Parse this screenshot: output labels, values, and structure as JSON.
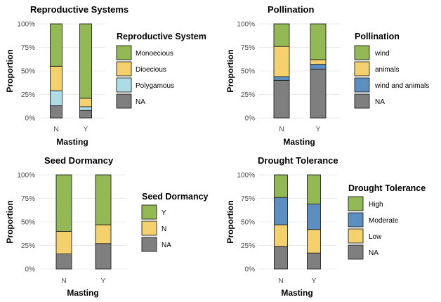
{
  "colors": {
    "Monoecious": "#92B954",
    "Dioecious": "#F5D16E",
    "Polygamous": "#ADDCE6",
    "NA": "#7F7F7F",
    "wind": "#92B954",
    "animals": "#F5D16E",
    "wind and animals": "#5B8FC2",
    "Y": "#92B954",
    "N": "#F5D16E",
    "High": "#92B954",
    "Moderate": "#5B8FC2",
    "Low": "#F5D16E"
  },
  "chart_data": [
    {
      "type": "bar",
      "stacked": true,
      "title": "Reproductive Systems",
      "xlabel": "Masting",
      "ylabel": "Proportion",
      "categories": [
        "N",
        "Y"
      ],
      "yticks": [
        "0%",
        "25%",
        "50%",
        "75%",
        "100%"
      ],
      "ylim": [
        0,
        1
      ],
      "legend_title": "Reproductive System",
      "series": [
        {
          "name": "NA",
          "values": [
            0.13,
            0.08
          ]
        },
        {
          "name": "Polygamous",
          "values": [
            0.16,
            0.04
          ]
        },
        {
          "name": "Dioecious",
          "values": [
            0.26,
            0.09
          ]
        },
        {
          "name": "Monoecious",
          "values": [
            0.45,
            0.79
          ]
        }
      ]
    },
    {
      "type": "bar",
      "stacked": true,
      "title": "Pollination",
      "xlabel": "Masting",
      "ylabel": "Proportion",
      "categories": [
        "N",
        "Y"
      ],
      "yticks": [
        "0%",
        "25%",
        "50%",
        "75%",
        "100%"
      ],
      "ylim": [
        0,
        1
      ],
      "legend_title": "Pollination",
      "series": [
        {
          "name": "NA",
          "values": [
            0.4,
            0.52
          ]
        },
        {
          "name": "wind and animals",
          "values": [
            0.04,
            0.05
          ]
        },
        {
          "name": "animals",
          "values": [
            0.32,
            0.05
          ]
        },
        {
          "name": "wind",
          "values": [
            0.24,
            0.38
          ]
        }
      ]
    },
    {
      "type": "bar",
      "stacked": true,
      "title": "Seed Dormancy",
      "xlabel": "Masting",
      "ylabel": "Proportion",
      "categories": [
        "N",
        "Y"
      ],
      "yticks": [
        "0%",
        "25%",
        "50%",
        "75%",
        "100%"
      ],
      "ylim": [
        0,
        1
      ],
      "legend_title": "Seed Dormancy",
      "series": [
        {
          "name": "NA",
          "values": [
            0.16,
            0.27
          ]
        },
        {
          "name": "N",
          "values": [
            0.24,
            0.2
          ]
        },
        {
          "name": "Y",
          "values": [
            0.6,
            0.53
          ]
        }
      ]
    },
    {
      "type": "bar",
      "stacked": true,
      "title": "Drought Tolerance",
      "xlabel": "Masting",
      "ylabel": "Proportion",
      "categories": [
        "N",
        "Y"
      ],
      "yticks": [
        "0%",
        "25%",
        "50%",
        "75%",
        "100%"
      ],
      "ylim": [
        0,
        1
      ],
      "legend_title": "Drought Tolerance",
      "series": [
        {
          "name": "NA",
          "values": [
            0.24,
            0.17
          ]
        },
        {
          "name": "Low",
          "values": [
            0.23,
            0.25
          ]
        },
        {
          "name": "Moderate",
          "values": [
            0.29,
            0.27
          ]
        },
        {
          "name": "High",
          "values": [
            0.24,
            0.31
          ]
        }
      ]
    }
  ],
  "legends": [
    [
      "Monoecious",
      "Dioecious",
      "Polygamous",
      "NA"
    ],
    [
      "wind",
      "animals",
      "wind and animals",
      "NA"
    ],
    [
      "Y",
      "N",
      "NA"
    ],
    [
      "High",
      "Moderate",
      "Low",
      "NA"
    ]
  ]
}
